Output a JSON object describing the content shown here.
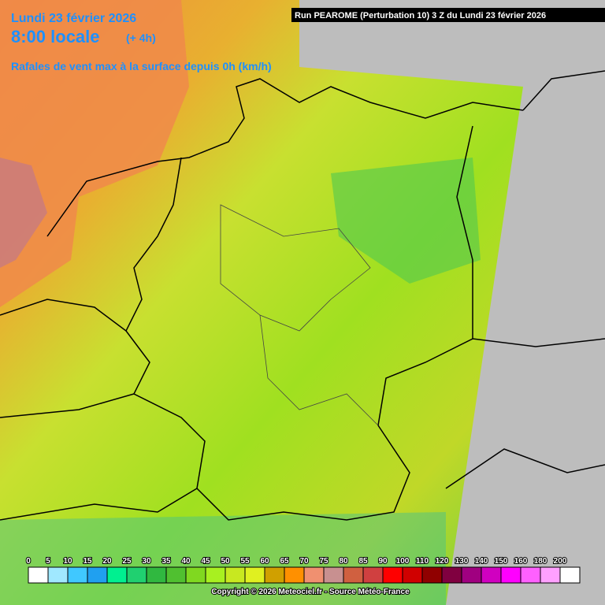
{
  "header": {
    "date": "Lundi 23 février 2026",
    "time": "8:00 locale",
    "offset": "(+ 4h)"
  },
  "run_info": "Run PEAROME (Perturbation 10) 3 Z du Lundi 23 février 2026",
  "title": "Rafales de vent max à la surface depuis 0h (km/h)",
  "legend": {
    "values": [
      0,
      5,
      10,
      15,
      20,
      25,
      30,
      35,
      40,
      45,
      50,
      55,
      60,
      65,
      70,
      75,
      80,
      85,
      90,
      100,
      110,
      120,
      130,
      140,
      150,
      160,
      180,
      200
    ],
    "colors": [
      "#ffffff",
      "#a0e8ff",
      "#40c8ff",
      "#20a0f0",
      "#00f090",
      "#20d070",
      "#30b840",
      "#50c030",
      "#80d820",
      "#a8f020",
      "#c8e820",
      "#e0f020",
      "#d0a000",
      "#ff9000",
      "#f09070",
      "#c89090",
      "#d06040",
      "#d04040",
      "#ff0000",
      "#d00000",
      "#900000",
      "#800040",
      "#a00080",
      "#d000c0",
      "#ff00ff",
      "#ff60ff",
      "#ffa0ff",
      "#ffffff"
    ]
  },
  "copyright": "Copyright © 2026 Meteociel.fr - Source Météo-France"
}
